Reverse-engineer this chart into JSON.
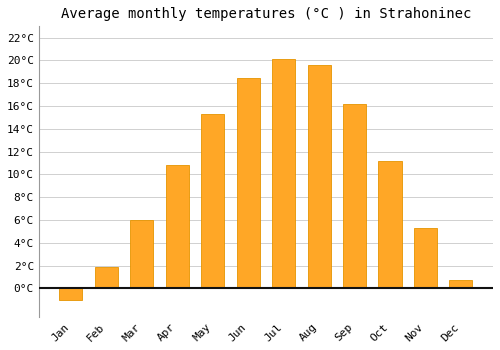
{
  "title": "Average monthly temperatures (°C ) in Strahoninec",
  "months": [
    "Jan",
    "Feb",
    "Mar",
    "Apr",
    "May",
    "Jun",
    "Jul",
    "Aug",
    "Sep",
    "Oct",
    "Nov",
    "Dec"
  ],
  "values": [
    -1.0,
    1.9,
    6.0,
    10.8,
    15.3,
    18.5,
    20.1,
    19.6,
    16.2,
    11.2,
    5.3,
    0.7
  ],
  "bar_color": "#FFA726",
  "bar_edge_color": "#E59400",
  "background_color": "#ffffff",
  "grid_color": "#d0d0d0",
  "ylim": [
    -2.5,
    23.0
  ],
  "yticks": [
    0,
    2,
    4,
    6,
    8,
    10,
    12,
    14,
    16,
    18,
    20,
    22
  ],
  "title_fontsize": 10,
  "tick_fontsize": 8,
  "figsize": [
    5.0,
    3.5
  ],
  "dpi": 100
}
